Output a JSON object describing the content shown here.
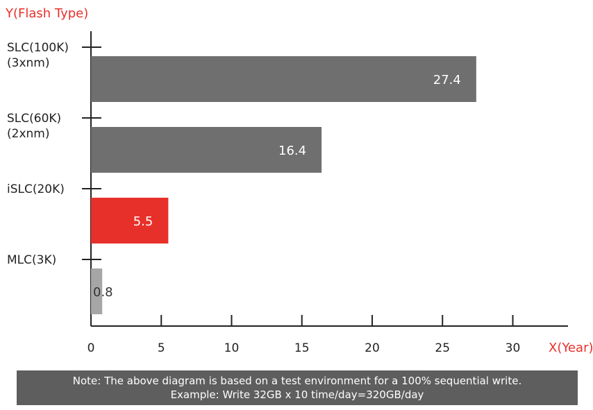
{
  "chart_data": {
    "type": "bar",
    "orientation": "horizontal",
    "ylabel": "Y(Flash Type)",
    "xlabel": "X(Year)",
    "categories": [
      [
        "SLC(100K)",
        "(3xnm)"
      ],
      [
        "SLC(60K)",
        "(2xnm)"
      ],
      [
        "iSLC(20K)"
      ],
      [
        "MLC(3K)"
      ]
    ],
    "values": [
      27.4,
      16.4,
      5.5,
      0.8
    ],
    "value_labels": [
      "27.4",
      "16.4",
      "5.5",
      "0.8"
    ],
    "bar_colors": [
      "#6f6f6f",
      "#6f6f6f",
      "#e8302a",
      "#a6a6a6"
    ],
    "value_label_colors": [
      "#ffffff",
      "#ffffff",
      "#ffffff",
      "#333333"
    ],
    "xlim": [
      0,
      34
    ],
    "xticks": [
      0,
      5,
      10,
      15,
      20,
      25,
      30
    ],
    "xtick_labels": [
      "0",
      "5",
      "10",
      "15",
      "20",
      "25",
      "30"
    ],
    "grid": false,
    "legend": "none",
    "accent_color": "#e8302a",
    "axis_color": "#222222"
  },
  "note": {
    "line1": "Note: The above diagram is based on a test environment for a 100% sequential write.",
    "line2": "Example: Write 32GB x 10 time/day=320GB/day"
  }
}
